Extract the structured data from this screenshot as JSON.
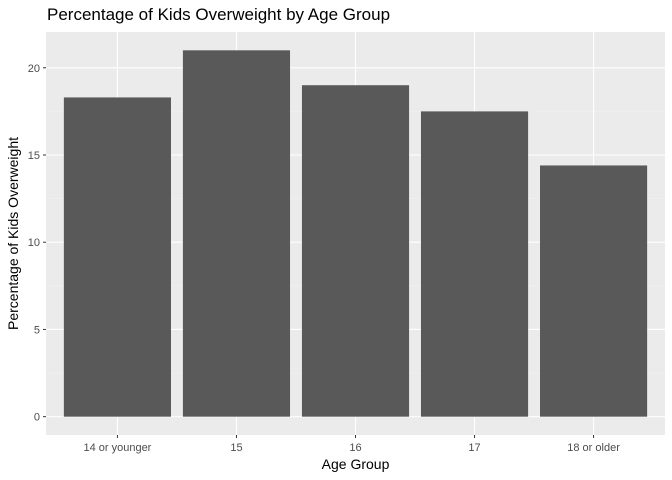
{
  "chart_data": {
    "type": "bar",
    "title": "Percentage of Kids Overweight by Age Group",
    "xlabel": "Age Group",
    "ylabel": "Percentage of Kids Overweight",
    "categories": [
      "14 or younger",
      "15",
      "16",
      "17",
      "18 or older"
    ],
    "values": [
      18.3,
      21.0,
      19.0,
      17.5,
      14.4
    ],
    "ylim": [
      -1.05,
      22.05
    ],
    "yticks": [
      0,
      5,
      10,
      15,
      20
    ],
    "grid": true,
    "legend": "none",
    "colors": {
      "bar": "#595959",
      "panel": "#ebebeb",
      "grid_major": "#ffffff",
      "grid_minor": "#f2f2f2",
      "tick": "#333333"
    }
  }
}
